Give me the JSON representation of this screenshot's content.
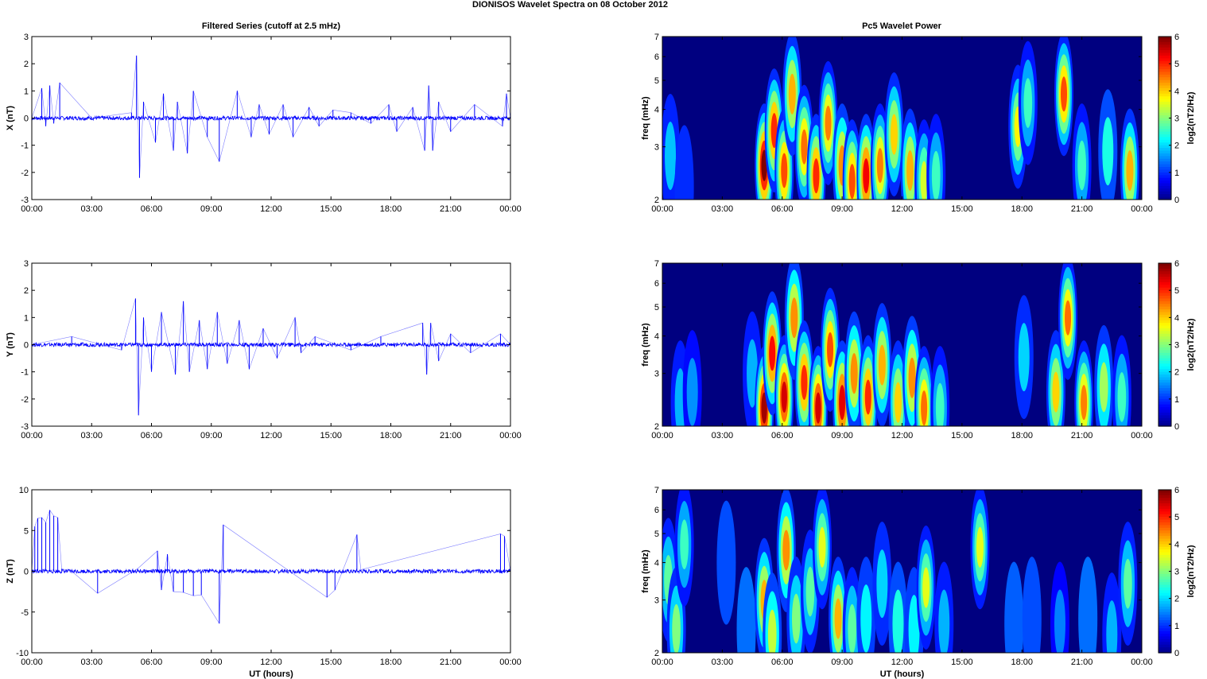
{
  "figure": {
    "title": "DIONISOS Wavelet Spectra on 08 October   2012",
    "left_title": "Filtered Series (cutoff at 2.5 mHz)",
    "right_title": "Pc5 Wavelet Power",
    "xlabel": "UT (hours)"
  },
  "chart_data": [
    {
      "type": "line",
      "title": "Filtered Series (cutoff at 2.5 mHz)",
      "ylabel": "X (nT)",
      "xlim": [
        0,
        24
      ],
      "ylim": [
        -3,
        3
      ],
      "x_ticks": [
        "00:00",
        "03:00",
        "06:00",
        "09:00",
        "12:00",
        "15:00",
        "18:00",
        "21:00",
        "00:00"
      ],
      "y_ticks": [
        "3",
        "2",
        "1",
        "0",
        "-1",
        "-2",
        "-3"
      ],
      "color": "#0000ff",
      "series": [
        {
          "x": [
            0,
            0.5,
            0.7,
            0.9,
            1.1,
            1.4,
            3,
            5.0,
            5.25,
            5.4,
            5.6,
            6.2,
            6.6,
            7.1,
            7.3,
            7.8,
            8.1,
            8.8,
            9.4,
            10.3,
            11.0,
            11.4,
            11.9,
            12.6,
            13.1,
            13.9,
            14.4,
            15.1,
            16,
            17,
            17.9,
            18.3,
            19.1,
            19.7,
            19.9,
            20.1,
            20.4,
            21.0,
            22.2,
            23.6,
            23.8,
            24
          ],
          "y": [
            0,
            1.1,
            -0.3,
            1.2,
            -0.2,
            1.3,
            0,
            0.2,
            2.3,
            -2.2,
            0.6,
            -0.9,
            0.9,
            -1.2,
            0.6,
            -1.3,
            1.0,
            -0.7,
            -1.6,
            1.0,
            -0.7,
            0.5,
            -0.6,
            0.5,
            -0.7,
            0.4,
            -0.3,
            0.3,
            0.2,
            -0.2,
            0.5,
            -0.5,
            0.4,
            -1.2,
            1.2,
            -1.2,
            0.6,
            -0.5,
            0.5,
            -0.3,
            0.9,
            0
          ]
        }
      ]
    },
    {
      "type": "line",
      "title": "",
      "ylabel": "Y (nT)",
      "xlim": [
        0,
        24
      ],
      "ylim": [
        -3,
        3
      ],
      "x_ticks": [
        "00:00",
        "03:00",
        "06:00",
        "09:00",
        "12:00",
        "15:00",
        "18:00",
        "21:00",
        "00:00"
      ],
      "y_ticks": [
        "3",
        "2",
        "1",
        "0",
        "-1",
        "-2",
        "-3"
      ],
      "color": "#0000ff",
      "series": [
        {
          "x": [
            0,
            2,
            4.5,
            5.2,
            5.35,
            5.6,
            6.0,
            6.5,
            7.2,
            7.6,
            7.9,
            8.4,
            8.8,
            9.3,
            9.8,
            10.4,
            10.9,
            11.6,
            12.3,
            13.2,
            13.5,
            14.2,
            16,
            17.5,
            19.6,
            19.8,
            20.0,
            20.4,
            21.0,
            22.0,
            23.5,
            24
          ],
          "y": [
            0,
            0.3,
            -0.2,
            1.7,
            -2.6,
            1.0,
            -1.0,
            1.2,
            -1.1,
            1.6,
            -1.0,
            0.9,
            -0.9,
            1.2,
            -0.7,
            0.9,
            -0.9,
            0.6,
            -0.5,
            1.0,
            -0.3,
            0.3,
            -0.2,
            0.3,
            0.8,
            -1.1,
            0.8,
            -0.6,
            0.4,
            -0.3,
            0.4,
            0
          ]
        }
      ]
    },
    {
      "type": "line",
      "title": "",
      "ylabel": "Z (nT)",
      "xlabel": "UT (hours)",
      "xlim": [
        0,
        24
      ],
      "ylim": [
        -10,
        10
      ],
      "x_ticks": [
        "00:00",
        "03:00",
        "06:00",
        "09:00",
        "12:00",
        "15:00",
        "18:00",
        "21:00",
        "00:00"
      ],
      "y_ticks": [
        "10",
        "5",
        "0",
        "-5",
        "-10"
      ],
      "color": "#0000ff",
      "series": [
        {
          "x": [
            0,
            0.15,
            0.3,
            0.5,
            0.7,
            0.9,
            1.1,
            1.3,
            1.5,
            2.0,
            3.3,
            5.3,
            6.3,
            6.5,
            6.8,
            7.1,
            7.6,
            8.1,
            8.5,
            9.4,
            9.6,
            14.8,
            15.2,
            16.3,
            16.5,
            23.5,
            23.7,
            24
          ],
          "y": [
            0,
            5.5,
            6.5,
            6.6,
            6.0,
            7.5,
            6.8,
            6.6,
            0.3,
            0,
            -2.7,
            0.3,
            2.5,
            -2.3,
            2.1,
            -2.5,
            -2.6,
            -3.0,
            -2.9,
            -6.4,
            5.7,
            -3.2,
            -2.3,
            4.5,
            0.2,
            4.6,
            4.3,
            0
          ]
        }
      ]
    },
    {
      "type": "heatmap",
      "title": "Pc5 Wavelet Power",
      "ylabel": "freq (mHz)",
      "xlim": [
        0,
        24
      ],
      "ylim": [
        2,
        7
      ],
      "log_y": true,
      "x_ticks": [
        "00:00",
        "03:00",
        "06:00",
        "09:00",
        "12:00",
        "15:00",
        "18:00",
        "21:00",
        "00:00"
      ],
      "y_ticks": [
        "7",
        "6",
        "5",
        "4",
        "3",
        "2"
      ],
      "colorbar_label": "log2(nT2/Hz)",
      "colorbar_range": [
        0,
        6
      ],
      "colorbar_ticks": [
        "6",
        "5",
        "4",
        "3",
        "2",
        "1",
        "0"
      ],
      "bursts": [
        {
          "t": 0.4,
          "f": 2.8,
          "p": 1.9
        },
        {
          "t": 1.1,
          "f": 2.2,
          "p": 1.0
        },
        {
          "t": 5.1,
          "f": 2.6,
          "p": 6.0
        },
        {
          "t": 5.6,
          "f": 3.4,
          "p": 5.0
        },
        {
          "t": 6.1,
          "f": 2.5,
          "p": 4.8
        },
        {
          "t": 6.5,
          "f": 4.5,
          "p": 4.2
        },
        {
          "t": 7.1,
          "f": 3.0,
          "p": 4.6
        },
        {
          "t": 7.7,
          "f": 2.4,
          "p": 5.0
        },
        {
          "t": 8.3,
          "f": 3.6,
          "p": 4.5
        },
        {
          "t": 9.0,
          "f": 2.6,
          "p": 4.4
        },
        {
          "t": 9.5,
          "f": 2.3,
          "p": 4.8
        },
        {
          "t": 10.2,
          "f": 2.4,
          "p": 5.3
        },
        {
          "t": 10.9,
          "f": 2.6,
          "p": 4.5
        },
        {
          "t": 11.6,
          "f": 3.3,
          "p": 4.0
        },
        {
          "t": 12.4,
          "f": 2.5,
          "p": 4.2
        },
        {
          "t": 13.1,
          "f": 2.3,
          "p": 3.5
        },
        {
          "t": 13.7,
          "f": 2.4,
          "p": 2.6
        },
        {
          "t": 17.8,
          "f": 3.5,
          "p": 3.8
        },
        {
          "t": 18.3,
          "f": 4.2,
          "p": 2.6
        },
        {
          "t": 20.1,
          "f": 4.5,
          "p": 4.8
        },
        {
          "t": 21.0,
          "f": 2.6,
          "p": 2.6
        },
        {
          "t": 22.3,
          "f": 2.9,
          "p": 2.4
        },
        {
          "t": 23.4,
          "f": 2.5,
          "p": 4.2
        }
      ]
    },
    {
      "type": "heatmap",
      "title": "",
      "ylabel": "freq (mHz)",
      "xlim": [
        0,
        24
      ],
      "ylim": [
        2,
        7
      ],
      "log_y": true,
      "x_ticks": [
        "00:00",
        "03:00",
        "06:00",
        "09:00",
        "12:00",
        "15:00",
        "18:00",
        "21:00",
        "00:00"
      ],
      "y_ticks": [
        "7",
        "6",
        "5",
        "4",
        "3",
        "2"
      ],
      "colorbar_label": "log2(nT2/Hz)",
      "colorbar_range": [
        0,
        6
      ],
      "colorbar_ticks": [
        "6",
        "5",
        "4",
        "3",
        "2",
        "1",
        "0"
      ],
      "bursts": [
        {
          "t": 0.9,
          "f": 2.4,
          "p": 1.8
        },
        {
          "t": 1.5,
          "f": 2.6,
          "p": 1.6
        },
        {
          "t": 4.5,
          "f": 3.0,
          "p": 1.8
        },
        {
          "t": 5.1,
          "f": 2.3,
          "p": 5.8
        },
        {
          "t": 5.5,
          "f": 3.5,
          "p": 5.2
        },
        {
          "t": 6.1,
          "f": 2.5,
          "p": 5.5
        },
        {
          "t": 6.6,
          "f": 4.6,
          "p": 4.4
        },
        {
          "t": 7.1,
          "f": 2.8,
          "p": 5.0
        },
        {
          "t": 7.8,
          "f": 2.3,
          "p": 5.5
        },
        {
          "t": 8.4,
          "f": 3.6,
          "p": 4.8
        },
        {
          "t": 9.0,
          "f": 2.4,
          "p": 5.4
        },
        {
          "t": 9.6,
          "f": 3.0,
          "p": 4.4
        },
        {
          "t": 10.3,
          "f": 2.5,
          "p": 5.0
        },
        {
          "t": 11.0,
          "f": 3.2,
          "p": 4.2
        },
        {
          "t": 11.8,
          "f": 2.4,
          "p": 4.0
        },
        {
          "t": 12.5,
          "f": 2.9,
          "p": 4.4
        },
        {
          "t": 13.1,
          "f": 2.3,
          "p": 4.6
        },
        {
          "t": 13.9,
          "f": 2.3,
          "p": 2.6
        },
        {
          "t": 18.1,
          "f": 3.4,
          "p": 2.0
        },
        {
          "t": 19.7,
          "f": 2.6,
          "p": 4.0
        },
        {
          "t": 20.3,
          "f": 4.6,
          "p": 4.6
        },
        {
          "t": 21.1,
          "f": 2.4,
          "p": 4.5
        },
        {
          "t": 22.1,
          "f": 2.7,
          "p": 3.2
        },
        {
          "t": 23.0,
          "f": 2.5,
          "p": 2.6
        }
      ]
    },
    {
      "type": "heatmap",
      "title": "",
      "ylabel": "freq (mHz)",
      "xlabel": "UT (hours)",
      "xlim": [
        0,
        24
      ],
      "ylim": [
        2,
        7
      ],
      "log_y": true,
      "x_ticks": [
        "00:00",
        "03:00",
        "06:00",
        "09:00",
        "12:00",
        "15:00",
        "18:00",
        "21:00",
        "00:00"
      ],
      "y_ticks": [
        "7",
        "6",
        "5",
        "4",
        "3",
        "2"
      ],
      "colorbar_label": "log2(nT2/Hz)",
      "colorbar_range": [
        0,
        6
      ],
      "colorbar_ticks": [
        "6",
        "5",
        "4",
        "3",
        "2",
        "1",
        "0"
      ],
      "bursts": [
        {
          "t": 0.3,
          "f": 3.5,
          "p": 2.8
        },
        {
          "t": 0.7,
          "f": 2.4,
          "p": 3.0
        },
        {
          "t": 1.1,
          "f": 4.6,
          "p": 2.6
        },
        {
          "t": 3.2,
          "f": 4.0,
          "p": 1.2
        },
        {
          "t": 4.2,
          "f": 2.4,
          "p": 1.4
        },
        {
          "t": 5.1,
          "f": 3.0,
          "p": 4.2
        },
        {
          "t": 5.5,
          "f": 2.3,
          "p": 3.4
        },
        {
          "t": 6.2,
          "f": 4.4,
          "p": 4.4
        },
        {
          "t": 6.7,
          "f": 2.6,
          "p": 3.0
        },
        {
          "t": 7.4,
          "f": 3.2,
          "p": 2.8
        },
        {
          "t": 8.0,
          "f": 4.5,
          "p": 3.6
        },
        {
          "t": 8.8,
          "f": 2.6,
          "p": 4.2
        },
        {
          "t": 9.5,
          "f": 2.4,
          "p": 2.8
        },
        {
          "t": 10.2,
          "f": 2.6,
          "p": 2.2
        },
        {
          "t": 11.0,
          "f": 3.4,
          "p": 2.0
        },
        {
          "t": 11.8,
          "f": 2.5,
          "p": 2.4
        },
        {
          "t": 12.6,
          "f": 2.4,
          "p": 2.2
        },
        {
          "t": 13.2,
          "f": 3.3,
          "p": 3.6
        },
        {
          "t": 14.1,
          "f": 2.5,
          "p": 1.8
        },
        {
          "t": 15.9,
          "f": 4.5,
          "p": 3.6
        },
        {
          "t": 17.6,
          "f": 2.5,
          "p": 1.3
        },
        {
          "t": 18.5,
          "f": 2.6,
          "p": 1.2
        },
        {
          "t": 19.9,
          "f": 2.5,
          "p": 1.5
        },
        {
          "t": 21.3,
          "f": 2.6,
          "p": 1.4
        },
        {
          "t": 22.5,
          "f": 2.3,
          "p": 1.8
        },
        {
          "t": 23.3,
          "f": 3.4,
          "p": 2.8
        }
      ]
    }
  ]
}
